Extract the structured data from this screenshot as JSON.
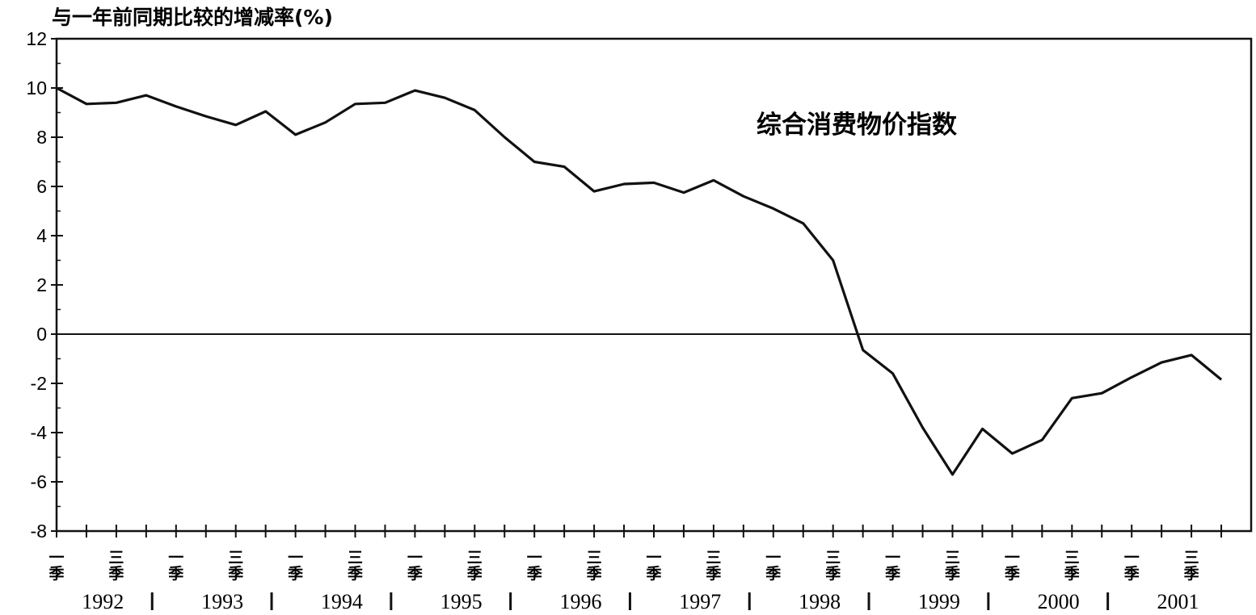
{
  "chart_data": {
    "type": "line",
    "ylabel": "与一年前同期比较的增减率(%)",
    "annotation": "综合消费物价指数",
    "ylim": [
      -8,
      12
    ],
    "yticks": [
      "12",
      "10",
      "8",
      "6",
      "4",
      "2",
      "0",
      "-2",
      "-4",
      "-6",
      "-8"
    ],
    "zero_line": true,
    "grid": false,
    "quarter_labels": [
      "一季",
      "三季"
    ],
    "years": [
      "1992",
      "1993",
      "1994",
      "1995",
      "1996",
      "1997",
      "1998",
      "1999",
      "2000",
      "2001"
    ],
    "series": [
      {
        "values": [
          10.0,
          9.35,
          9.4,
          9.7,
          9.25,
          8.85,
          8.5,
          9.05,
          8.1,
          8.6,
          9.35,
          9.4,
          9.9,
          9.6,
          9.1,
          8.0,
          7.0,
          6.8,
          5.8,
          6.1,
          6.15,
          5.75,
          6.25,
          5.6,
          5.1,
          4.5,
          3.0,
          -0.65,
          -1.6,
          -3.8,
          -5.7,
          -3.85,
          -4.85,
          -4.3,
          -2.6,
          -2.4,
          -1.75,
          -1.15,
          -0.85,
          -1.85
        ]
      }
    ]
  }
}
